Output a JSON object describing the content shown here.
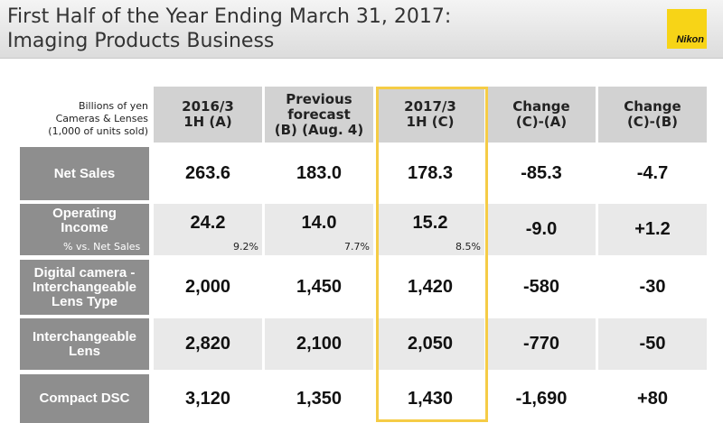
{
  "header": {
    "title_lines": [
      "First Half of the Year Ending March 31, 2017:",
      "Imaging Products Business"
    ],
    "logo": "Nikon"
  },
  "table": {
    "note_lines": [
      "Billions of yen",
      "Cameras & Lenses",
      "(1,000 of units sold)"
    ],
    "columns": [
      [
        "2016/3",
        "1H (A)"
      ],
      [
        "Previous",
        "forecast",
        "(B)  (Aug. 4)"
      ],
      [
        "2017/3",
        "1H (C)"
      ],
      [
        "Change",
        "(C)-(A)"
      ],
      [
        "Change",
        "(C)-(B)"
      ]
    ],
    "rows": [
      {
        "label": [
          "Net Sales"
        ],
        "cells": [
          "263.6",
          "183.0",
          "178.3",
          "-85.3",
          "-4.7"
        ]
      },
      {
        "label": [
          "Operating",
          "Income"
        ],
        "cells": [
          "24.2",
          "14.0",
          "15.2",
          "-9.0",
          "+1.2"
        ],
        "sub_label": "% vs. Net Sales",
        "sub_cells": [
          "9.2%",
          "7.7%",
          "8.5%"
        ]
      },
      {
        "label": [
          "Digital camera -",
          "Interchangeable",
          "Lens Type"
        ],
        "cells": [
          "2,000",
          "1,450",
          "1,420",
          "-580",
          "-30"
        ]
      },
      {
        "label": [
          "Interchangeable",
          "Lens"
        ],
        "cells": [
          "2,820",
          "2,100",
          "2,050",
          "-770",
          "-50"
        ]
      },
      {
        "label": [
          "Compact DSC"
        ],
        "cells": [
          "3,120",
          "1,350",
          "1,430",
          "-1,690",
          "+80"
        ]
      }
    ]
  }
}
